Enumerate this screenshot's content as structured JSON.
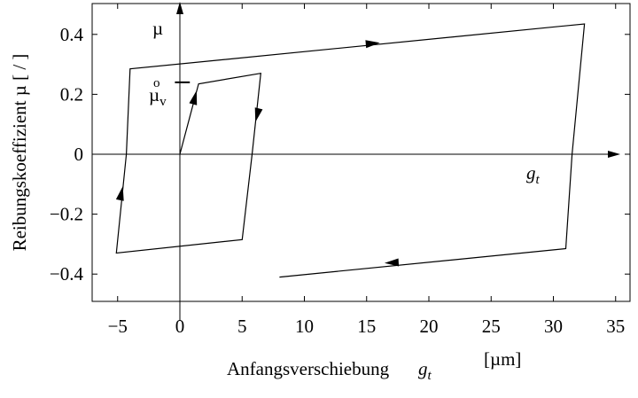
{
  "chart_data": {
    "type": "line",
    "xlabel": "Anfangsverschiebung",
    "xlabel_symbol": "g",
    "xlabel_symbol_sub": "t",
    "xlabel_unit": "[µm]",
    "ylabel": "Reibungskoeffizient µ [ / ]",
    "xlim": [
      -7,
      35
    ],
    "ylim": [
      -0.5,
      0.5
    ],
    "grid": false,
    "x_ticks": [
      -5,
      0,
      5,
      10,
      15,
      20,
      25,
      30,
      35
    ],
    "x_tick_labels": [
      "−5",
      "0",
      "5",
      "10",
      "15",
      "20",
      "25",
      "30",
      "35"
    ],
    "y_ticks": [
      0.4,
      0.2,
      0,
      -0.2,
      -0.4
    ],
    "y_tick_labels": [
      "0.4",
      "0.2",
      "0",
      "−0.2",
      "−0.4"
    ],
    "series": [
      {
        "stroke": "#000000",
        "points": [
          [
            0,
            0
          ],
          [
            1.5,
            0.235
          ],
          [
            6.5,
            0.27
          ],
          [
            5.8,
            0
          ],
          [
            5,
            -0.285
          ],
          [
            -5.1,
            -0.33
          ],
          [
            -4.3,
            0
          ],
          [
            -4,
            0.285
          ],
          [
            32.5,
            0.435
          ],
          [
            31.5,
            0
          ],
          [
            31,
            -0.315
          ],
          [
            8,
            -0.41
          ]
        ]
      }
    ],
    "arrows": [
      {
        "at": [
          1.2,
          0.19
        ],
        "dir": [
          1,
          1.6
        ]
      },
      {
        "at": [
          6.2,
          0.13
        ],
        "dir": [
          -0.6,
          -1
        ]
      },
      {
        "at": [
          -4.7,
          -0.13
        ],
        "dir": [
          0.5,
          1
        ]
      },
      {
        "at": [
          15.5,
          0.37
        ],
        "dir": [
          1,
          0.04
        ]
      },
      {
        "at": [
          17,
          -0.362
        ],
        "dir": [
          -1,
          -0.02
        ]
      }
    ],
    "mu_v": {
      "value": 0.24,
      "x_span": [
        -0.4,
        0.8
      ]
    },
    "annotations": {
      "mu_axis_label": "µ",
      "mu_v_label": "µ",
      "mu_v_circle": "o",
      "mu_v_sub": "v",
      "gt_label": "g",
      "gt_sub": "t"
    }
  }
}
